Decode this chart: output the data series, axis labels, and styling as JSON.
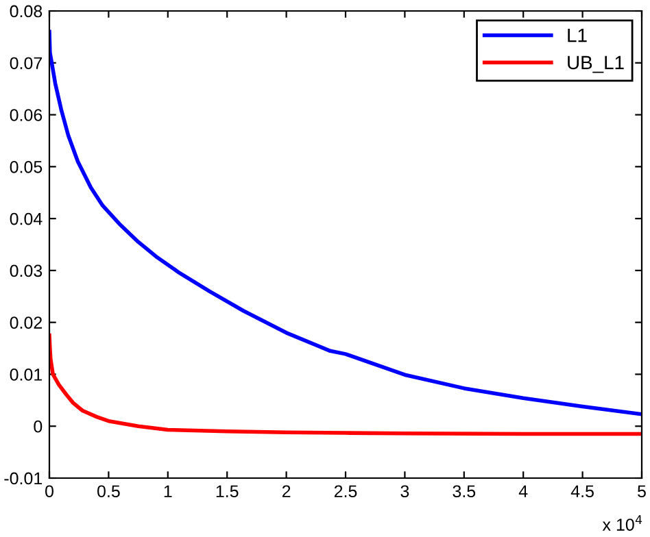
{
  "chart_data": {
    "type": "line",
    "xlim": [
      0,
      5
    ],
    "ylim": [
      -0.01,
      0.08
    ],
    "xticks": [
      0,
      0.5,
      1,
      1.5,
      2,
      2.5,
      3,
      3.5,
      4,
      4.5,
      5
    ],
    "yticks": [
      -0.01,
      0,
      0.01,
      0.02,
      0.03,
      0.04,
      0.05,
      0.06,
      0.07,
      0.08
    ],
    "annotations": [
      "x 10$^{4}$"
    ],
    "legend": "top right",
    "series": [
      {
        "name": "L1",
        "color": "#0000ff",
        "x": [
          0,
          0.005,
          0.02,
          0.05,
          0.1,
          0.16,
          0.24,
          0.35,
          0.45,
          0.59,
          0.75,
          0.9,
          1.1,
          1.35,
          1.64,
          2.0,
          2.37,
          2.5,
          3.0,
          3.5,
          4.0,
          4.5,
          5.0
        ],
        "values": [
          0.076,
          0.072,
          0.07,
          0.066,
          0.061,
          0.056,
          0.051,
          0.046,
          0.0425,
          0.039,
          0.0355,
          0.0327,
          0.0295,
          0.026,
          0.0222,
          0.018,
          0.0145,
          0.0139,
          0.0099,
          0.0073,
          0.0054,
          0.0038,
          0.0023
        ]
      },
      {
        "name": "UB_L1",
        "color": "#ff0000",
        "x": [
          0,
          0.005,
          0.01,
          0.03,
          0.08,
          0.146,
          0.2,
          0.28,
          0.4,
          0.5,
          0.65,
          0.75,
          1.0,
          1.5,
          2.0,
          2.5,
          3.0,
          4.0,
          5.0
        ],
        "values": [
          0.0175,
          0.015,
          0.013,
          0.01,
          0.008,
          0.006,
          0.0045,
          0.003,
          0.0018,
          0.001,
          0.0004,
          0.0,
          -0.0007,
          -0.001,
          -0.0012,
          -0.0013,
          -0.0014,
          -0.0015,
          -0.0015
        ]
      }
    ]
  }
}
